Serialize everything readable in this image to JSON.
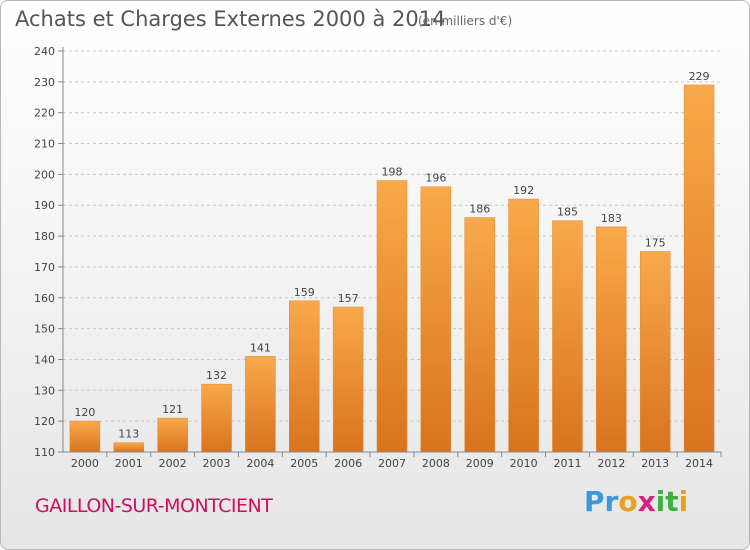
{
  "title": "Achats et Charges Externes 2000 à 2014",
  "subtitle": "(en milliers d'€)",
  "city": "GAILLON-SUR-MONTCIENT",
  "logo": {
    "letters": [
      "P",
      "r",
      "o",
      "x",
      "i",
      "t",
      "i"
    ],
    "colors": [
      "#3a9ad9",
      "#3a9ad9",
      "#e8a020",
      "#d92080",
      "#40b040",
      "#40b040",
      "#e8a020"
    ]
  },
  "colors": {
    "bar_top": "#f8a94a",
    "bar_bottom": "#d9731e",
    "axis": "#888888",
    "grid": "#c8c8c8",
    "text": "#444444"
  },
  "chart_data": {
    "type": "bar",
    "categories": [
      "2000",
      "2001",
      "2002",
      "2003",
      "2004",
      "2005",
      "2006",
      "2007",
      "2008",
      "2009",
      "2010",
      "2011",
      "2012",
      "2013",
      "2014"
    ],
    "values": [
      120,
      113,
      121,
      132,
      141,
      159,
      157,
      198,
      196,
      186,
      192,
      185,
      183,
      175,
      229
    ],
    "data_labels": [
      "120",
      "113",
      "121",
      "132",
      "141",
      "159",
      "157",
      "198",
      "196",
      "186",
      "192",
      "185",
      "183",
      "175",
      "229"
    ],
    "y_ticks": [
      "110",
      "120",
      "130",
      "140",
      "150",
      "160",
      "170",
      "180",
      "190",
      "200",
      "210",
      "220",
      "230",
      "240"
    ],
    "ylim": [
      110,
      240
    ],
    "grid": true,
    "title": "Achats et Charges Externes 2000 à 2014",
    "xlabel": "",
    "ylabel": ""
  }
}
